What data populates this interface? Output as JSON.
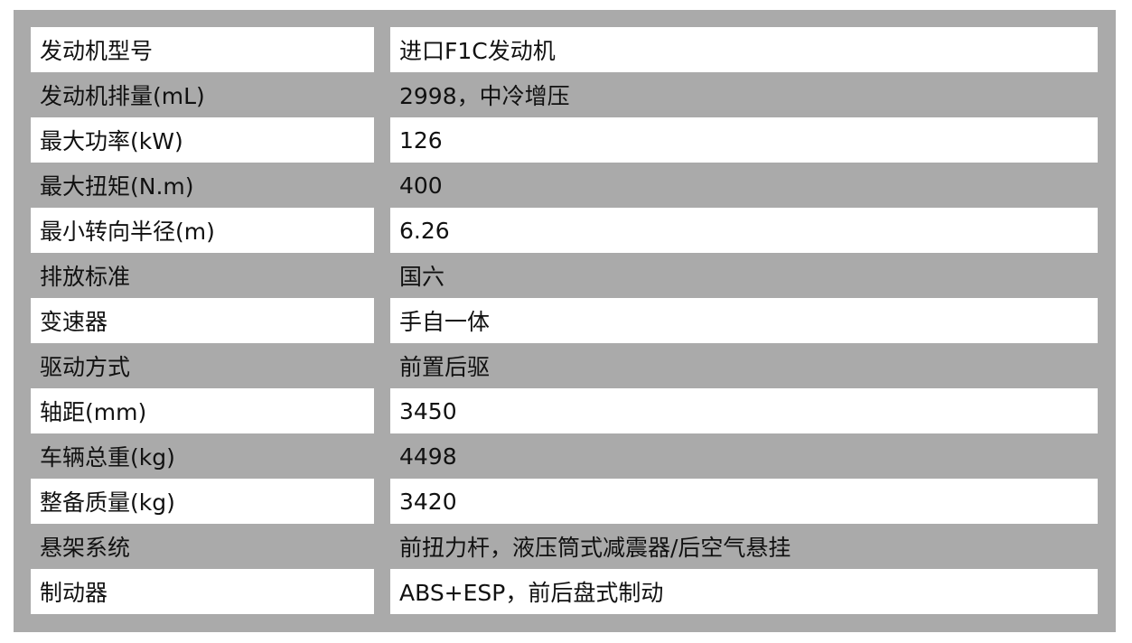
{
  "colors": {
    "background_gray": "#aaaaaa",
    "row_white": "#ffffff",
    "text": "#111111"
  },
  "rows": [
    {
      "label": "发动机型号",
      "value": "进口F1C发动机"
    },
    {
      "label": "发动机排量(mL)",
      "value": "2998，中冷增压"
    },
    {
      "label": "最大功率(kW)",
      "value": "126"
    },
    {
      "label": "最大扭矩(N.m)",
      "value": "400"
    },
    {
      "label": "最小转向半径(m)",
      "value": "6.26"
    },
    {
      "label": "排放标准",
      "value": "国六"
    },
    {
      "label": "变速器",
      "value": "手自一体"
    },
    {
      "label": "驱动方式",
      "value": "前置后驱"
    },
    {
      "label": "轴距(mm)",
      "value": "3450"
    },
    {
      "label": "车辆总重(kg)",
      "value": "4498"
    },
    {
      "label": "整备质量(kg)",
      "value": "3420"
    },
    {
      "label": "悬架系统",
      "value": "前扭力杆，液压筒式减震器/后空气悬挂"
    },
    {
      "label": "制动器",
      "value": "ABS+ESP，前后盘式制动"
    }
  ]
}
